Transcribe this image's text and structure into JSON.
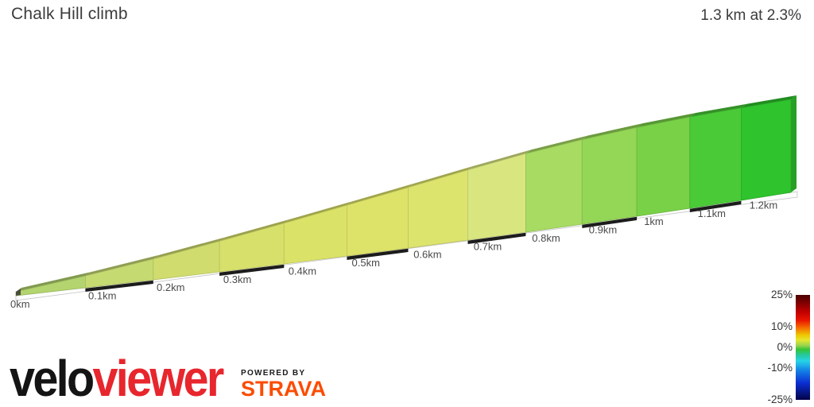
{
  "header": {
    "title": "Chalk Hill climb",
    "summary": "1.3 km at 2.3%"
  },
  "chart_data": {
    "type": "area",
    "title": "Chalk Hill climb",
    "subtitle": "1.3 km at 2.3%",
    "total_distance_km": 1.3,
    "average_gradient_pct": 2.3,
    "x_unit": "km",
    "style": "3d-extruded-elevation-profile",
    "x_ticks": [
      {
        "km": 0,
        "label": "0km"
      },
      {
        "km": 0.1,
        "label": "0.1km"
      },
      {
        "km": 0.2,
        "label": "0.2km"
      },
      {
        "km": 0.3,
        "label": "0.3km"
      },
      {
        "km": 0.4,
        "label": "0.4km"
      },
      {
        "km": 0.5,
        "label": "0.5km"
      },
      {
        "km": 0.6,
        "label": "0.6km"
      },
      {
        "km": 0.7,
        "label": "0.7km"
      },
      {
        "km": 0.8,
        "label": "0.8km"
      },
      {
        "km": 0.9,
        "label": "0.9km"
      },
      {
        "km": 1.0,
        "label": "1km"
      },
      {
        "km": 1.1,
        "label": "1.1km"
      },
      {
        "km": 1.2,
        "label": "1.2km"
      }
    ],
    "segments": [
      {
        "from_km": 0.0,
        "to_km": 0.1,
        "gradient_pct": 2.8,
        "color": "#b3d46e"
      },
      {
        "from_km": 0.1,
        "to_km": 0.2,
        "gradient_pct": 3.2,
        "color": "#c6da72"
      },
      {
        "from_km": 0.2,
        "to_km": 0.3,
        "gradient_pct": 3.5,
        "color": "#d0dd6e"
      },
      {
        "from_km": 0.3,
        "to_km": 0.4,
        "gradient_pct": 3.6,
        "color": "#d7e06b"
      },
      {
        "from_km": 0.4,
        "to_km": 0.5,
        "gradient_pct": 3.6,
        "color": "#dbe268"
      },
      {
        "from_km": 0.5,
        "to_km": 0.6,
        "gradient_pct": 3.5,
        "color": "#dde368"
      },
      {
        "from_km": 0.6,
        "to_km": 0.7,
        "gradient_pct": 3.4,
        "color": "#dde46d"
      },
      {
        "from_km": 0.7,
        "to_km": 0.8,
        "gradient_pct": 3.0,
        "color": "#d9e680"
      },
      {
        "from_km": 0.8,
        "to_km": 0.9,
        "gradient_pct": 2.2,
        "color": "#a8db62"
      },
      {
        "from_km": 0.9,
        "to_km": 1.0,
        "gradient_pct": 1.5,
        "color": "#94d656"
      },
      {
        "from_km": 1.0,
        "to_km": 1.1,
        "gradient_pct": 0.9,
        "color": "#79d148"
      },
      {
        "from_km": 1.1,
        "to_km": 1.2,
        "gradient_pct": 0.4,
        "color": "#4aca37"
      },
      {
        "from_km": 1.2,
        "to_km": 1.3,
        "gradient_pct": 0.2,
        "color": "#2fc32d"
      }
    ],
    "legend": {
      "min": -25,
      "max": 25,
      "position": "bottom-right",
      "ticks": [
        {
          "label": "25%",
          "value": 25
        },
        {
          "label": "10%",
          "value": 10
        },
        {
          "label": "0%",
          "value": 0
        },
        {
          "label": "-10%",
          "value": -10
        },
        {
          "label": "-25%",
          "value": -25
        }
      ],
      "stops": [
        {
          "at": 0.0,
          "color": "#4a0300"
        },
        {
          "at": 0.07,
          "color": "#7c0000"
        },
        {
          "at": 0.16,
          "color": "#c00000"
        },
        {
          "at": 0.24,
          "color": "#e81400"
        },
        {
          "at": 0.31,
          "color": "#f46a00"
        },
        {
          "at": 0.38,
          "color": "#efc400"
        },
        {
          "at": 0.43,
          "color": "#e6e62e"
        },
        {
          "at": 0.48,
          "color": "#9ed44e"
        },
        {
          "at": 0.52,
          "color": "#35c435"
        },
        {
          "at": 0.57,
          "color": "#26c898"
        },
        {
          "at": 0.63,
          "color": "#27d3e8"
        },
        {
          "at": 0.72,
          "color": "#1382e6"
        },
        {
          "at": 0.84,
          "color": "#0b2ed2"
        },
        {
          "at": 1.0,
          "color": "#020246"
        }
      ]
    },
    "ruler": {
      "dash_color": "#1c1c1c",
      "base_color": "#fdfdfd",
      "edge_color": "#c3c3c3",
      "black_intervals_km": [
        [
          0.1,
          0.2
        ],
        [
          0.3,
          0.4
        ],
        [
          0.5,
          0.6
        ],
        [
          0.7,
          0.8
        ],
        [
          0.9,
          1.0
        ],
        [
          1.1,
          1.2
        ]
      ]
    }
  },
  "branding": {
    "logo_part1": "velo",
    "logo_part2": "viewer",
    "logo_color1": "#141414",
    "logo_color2": "#e7262d",
    "powered_by": "POWERED BY",
    "strava": "STRAVA",
    "strava_color": "#fc4c02"
  }
}
